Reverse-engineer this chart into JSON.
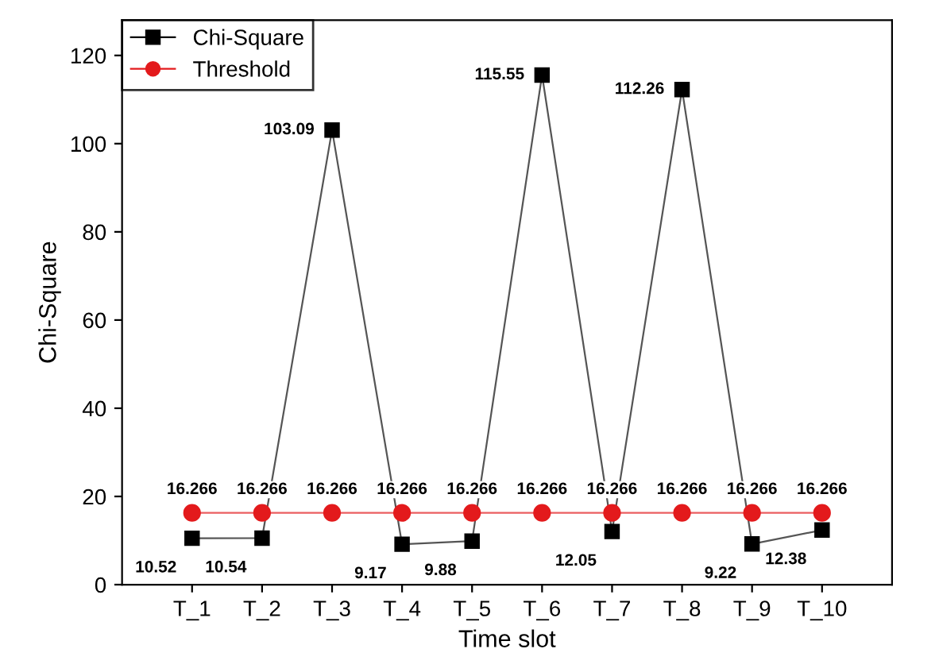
{
  "chart_data": {
    "type": "line",
    "xlabel": "Time slot",
    "ylabel": "Chi-Square",
    "categories": [
      "T_1",
      "T_2",
      "T_3",
      "T_4",
      "T_5",
      "T_6",
      "T_7",
      "T_8",
      "T_9",
      "T_10"
    ],
    "series": [
      {
        "name": "Chi-Square",
        "color": "#000000",
        "marker": "square",
        "values": [
          10.52,
          10.54,
          103.09,
          9.17,
          9.88,
          115.55,
          12.05,
          112.26,
          9.22,
          12.38
        ]
      },
      {
        "name": "Threshold",
        "color": "#e31a1c",
        "marker": "circle",
        "values": [
          16.266,
          16.266,
          16.266,
          16.266,
          16.266,
          16.266,
          16.266,
          16.266,
          16.266,
          16.266
        ]
      }
    ],
    "ylim": [
      0,
      128
    ],
    "yticks": [
      0,
      20,
      40,
      60,
      80,
      100,
      120
    ],
    "data_labels": true,
    "legend": "top left",
    "grid": false
  }
}
